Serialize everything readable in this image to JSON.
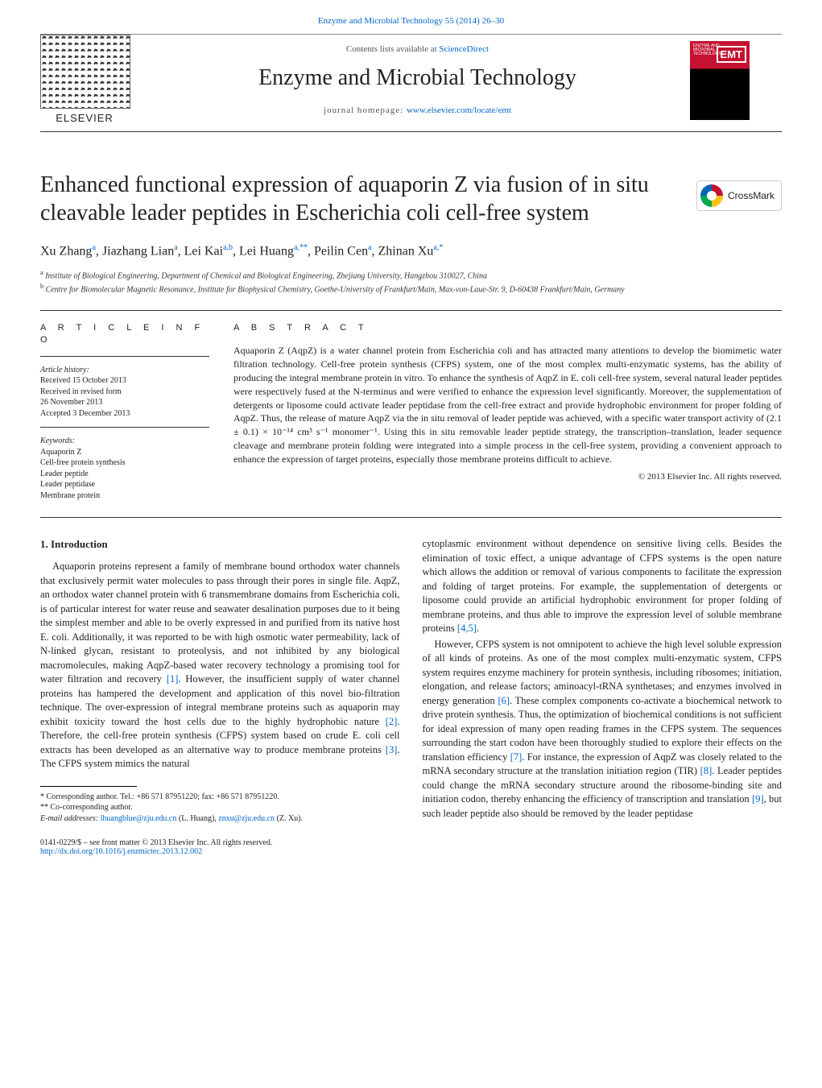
{
  "colors": {
    "link": "#0066cc",
    "accent_red": "#c41230",
    "text": "#222222",
    "rule": "#333333",
    "bg": "#ffffff"
  },
  "typography": {
    "body_font": "Georgia, serif",
    "title_size_pt": 21,
    "body_size_pt": 9.5,
    "abstract_size_pt": 9
  },
  "header": {
    "citation": "Enzyme and Microbial Technology 55 (2014) 26–30",
    "contents_prefix": "Contents lists available at ",
    "contents_link": "ScienceDirect",
    "journal": "Enzyme and Microbial Technology",
    "homepage_label": "journal homepage: ",
    "homepage_url": "www.elsevier.com/locate/emt",
    "publisher": "ELSEVIER",
    "cover_abbrev": "EMT"
  },
  "crossmark": {
    "label": "CrossMark"
  },
  "title": "Enhanced functional expression of aquaporin Z via fusion of in situ cleavable leader peptides in Escherichia coli cell-free system",
  "authors_html": "Xu Zhang<sup>a</sup>, Jiazhang Lian<sup>a</sup>, Lei Kai<sup>a,b</sup>, Lei Huang<sup>a,**</sup>, Peilin Cen<sup>a</sup>, Zhinan Xu<sup>a,*</sup>",
  "affiliations": [
    "a Institute of Biological Engineering, Department of Chemical and Biological Engineering, Zhejiang University, Hangzhou 310027, China",
    "b Centre for Biomolecular Magnetic Resonance, Institute for Biophysical Chemistry, Goethe-University of Frankfurt/Main, Max-von-Laue-Str. 9, D-60438 Frankfurt/Main, Germany"
  ],
  "article_info": {
    "heading": "A R T I C L E   I N F O",
    "history_label": "Article history:",
    "history": [
      "Received 15 October 2013",
      "Received in revised form",
      "26 November 2013",
      "Accepted 3 December 2013"
    ],
    "keywords_label": "Keywords:",
    "keywords": [
      "Aquaporin Z",
      "Cell-free protein synthesis",
      "Leader peptide",
      "Leader peptidase",
      "Membrane protein"
    ]
  },
  "abstract": {
    "heading": "A B S T R A C T",
    "text": "Aquaporin Z (AqpZ) is a water channel protein from Escherichia coli and has attracted many attentions to develop the biomimetic water filtration technology. Cell-free protein synthesis (CFPS) system, one of the most complex multi-enzymatic systems, has the ability of producing the integral membrane protein in vitro. To enhance the synthesis of AqpZ in E. coli cell-free system, several natural leader peptides were respectively fused at the N-terminus and were verified to enhance the expression level significantly. Moreover, the supplementation of detergents or liposome could activate leader peptidase from the cell-free extract and provide hydrophobic environment for proper folding of AqpZ. Thus, the release of mature AqpZ via the in situ removal of leader peptide was achieved, with a specific water transport activity of (2.1 ± 0.1) × 10⁻¹⁴ cm³ s⁻¹ monomer⁻¹. Using this in situ removable leader peptide strategy, the transcription–translation, leader sequence cleavage and membrane protein folding were integrated into a simple process in the cell-free system, providing a convenient approach to enhance the expression of target proteins, especially those membrane proteins difficult to achieve.",
    "copyright": "© 2013 Elsevier Inc. All rights reserved."
  },
  "sections": {
    "intro_heading": "1.  Introduction",
    "intro_p1": "Aquaporin proteins represent a family of membrane bound orthodox water channels that exclusively permit water molecules to pass through their pores in single file. AqpZ, an orthodox water channel protein with 6 transmembrane domains from Escherichia coli, is of particular interest for water reuse and seawater desalination purposes due to it being the simplest member and able to be overly expressed in and purified from its native host E. coli. Additionally, it was reported to be with high osmotic water permeability, lack of N-linked glycan, resistant to proteolysis, and not inhibited by any biological macromolecules, making AqpZ-based water recovery technology a promising tool for water filtration and recovery ",
    "intro_p1_ref": "[1]",
    "intro_p1b": ". However, the insufficient supply of water channel proteins has hampered the development and application of this novel bio-filtration technique. The over-expression of integral membrane proteins such as aquaporin may exhibit toxicity toward the host cells due to the highly hydrophobic nature ",
    "intro_p1_ref2": "[2]",
    "intro_p1c": ". Therefore, the cell-free protein synthesis (CFPS) system based on crude E. coli cell extracts has been developed as an alternative way to produce membrane proteins ",
    "intro_p1_ref3": "[3]",
    "intro_p1d": ". The CFPS system mimics the natural",
    "intro_p2a": "cytoplasmic environment without dependence on sensitive living cells. Besides the elimination of toxic effect, a unique advantage of CFPS systems is the open nature which allows the addition or removal of various components to facilitate the expression and folding of target proteins. For example, the supplementation of detergents or liposome could provide an artificial hydrophobic environment for proper folding of membrane proteins, and thus able to improve the expression level of soluble membrane proteins ",
    "intro_p2_ref": "[4,5]",
    "intro_p2b": ".",
    "intro_p3a": "However, CFPS system is not omnipotent to achieve the high level soluble expression of all kinds of proteins. As one of the most complex multi-enzymatic system, CFPS system requires enzyme machinery for protein synthesis, including ribosomes; initiation, elongation, and release factors; aminoacyl-tRNA synthetases; and enzymes involved in energy generation ",
    "intro_p3_ref1": "[6]",
    "intro_p3b": ". These complex components co-activate a biochemical network to drive protein synthesis. Thus, the optimization of biochemical conditions is not sufficient for ideal expression of many open reading frames in the CFPS system. The sequences surrounding the start codon have been thoroughly studied to explore their effects on the translation efficiency ",
    "intro_p3_ref2": "[7]",
    "intro_p3c": ". For instance, the expression of AqpZ was closely related to the mRNA secondary structure at the translation initiation region (TIR) ",
    "intro_p3_ref3": "[8]",
    "intro_p3d": ". Leader peptides could change the mRNA secondary structure around the ribosome-binding site and initiation codon, thereby enhancing the efficiency of transcription and translation ",
    "intro_p3_ref4": "[9]",
    "intro_p3e": ", but such leader peptide also should be removed by the leader peptidase"
  },
  "footnotes": {
    "corr1": "* Corresponding author. Tel.: +86 571 87951220; fax: +86 571 87951220.",
    "corr2": "** Co-corresponding author.",
    "email_label": "E-mail addresses: ",
    "email1": "lhuangblue@zju.edu.cn",
    "email1_name": " (L. Huang), ",
    "email2": "znxu@zju.edu.cn",
    "email2_name": " (Z. Xu)."
  },
  "footer": {
    "issn": "0141-0229/$ – see front matter © 2013 Elsevier Inc. All rights reserved.",
    "doi": "http://dx.doi.org/10.1016/j.enzmictec.2013.12.002"
  }
}
